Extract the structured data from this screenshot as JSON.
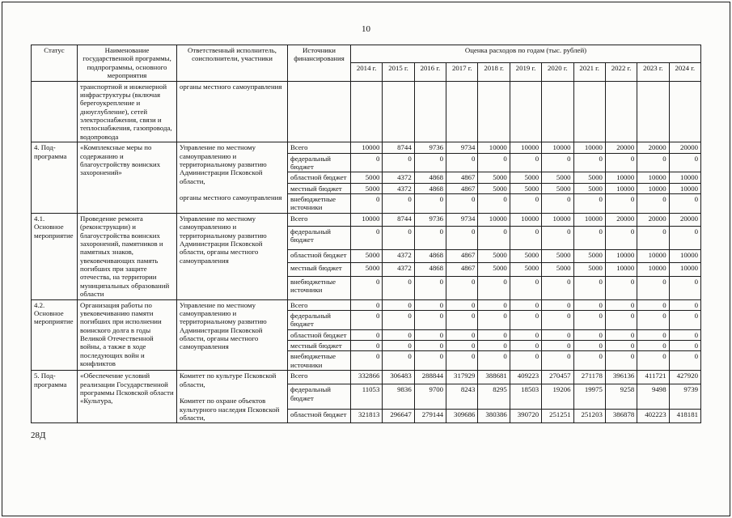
{
  "page": {
    "number": "10",
    "footer_code": "28Д"
  },
  "table": {
    "title_row": {
      "status": "Статус",
      "name": "Наименование государственной программы, подпрограммы, основного мероприятия",
      "executor": "Ответственный исполнитель, соисполнители, участники",
      "source": "Источники финансирования",
      "years_group": "Оценка расходов по годам (тыс. рублей)"
    },
    "years": [
      "2014 г.",
      "2015 г.",
      "2016 г.",
      "2017 г.",
      "2018 г.",
      "2019 г.",
      "2020 г.",
      "2021 г.",
      "2022 г.",
      "2023 г.",
      "2024 г."
    ],
    "groups": [
      {
        "status": "",
        "name": "транспортной и инженерной инфраструктуры (включая берегоукрепление и дноуглубление), сетей электроснабжения, связи и теплоснабжения, газопровода, водопровода",
        "executor": "органы местного самоуправления",
        "funding": [
          {
            "source": "",
            "values": [
              "",
              "",
              "",
              "",
              "",
              "",
              "",
              "",
              "",
              "",
              ""
            ]
          }
        ]
      },
      {
        "status": "4. Под-программа",
        "name": "«Комплексные меры по содержанию и благоустройству воинских захоронений»",
        "executor": "Управление по местному самоуправлению и территориальному развитию Администрации Псковской области,\n\nорганы местного самоуправления",
        "funding": [
          {
            "source": "Всего",
            "values": [
              "10000",
              "8744",
              "9736",
              "9734",
              "10000",
              "10000",
              "10000",
              "10000",
              "20000",
              "20000",
              "20000"
            ]
          },
          {
            "source": "федеральный бюджет",
            "values": [
              "0",
              "0",
              "0",
              "0",
              "0",
              "0",
              "0",
              "0",
              "0",
              "0",
              "0"
            ]
          },
          {
            "source": "областной бюджет",
            "values": [
              "5000",
              "4372",
              "4868",
              "4867",
              "5000",
              "5000",
              "5000",
              "5000",
              "10000",
              "10000",
              "10000"
            ]
          },
          {
            "source": "местный бюджет",
            "values": [
              "5000",
              "4372",
              "4868",
              "4867",
              "5000",
              "5000",
              "5000",
              "5000",
              "10000",
              "10000",
              "10000"
            ]
          },
          {
            "source": "внебюджетные источники",
            "values": [
              "0",
              "0",
              "0",
              "0",
              "0",
              "0",
              "0",
              "0",
              "0",
              "0",
              "0"
            ]
          }
        ]
      },
      {
        "status": "4.1. Основное мероприятие",
        "name": "Проведение ремонта (реконструкции) и благоустройства воинских захоронений, памятников и памятных знаков, увековечивающих память погибших при защите отечества, на территории муниципальных образований области",
        "executor": "Управление по местному самоуправлению и территориальному развитию Администрации Псковской области, органы местного самоуправления",
        "funding": [
          {
            "source": "Всего",
            "values": [
              "10000",
              "8744",
              "9736",
              "9734",
              "10000",
              "10000",
              "10000",
              "10000",
              "20000",
              "20000",
              "20000"
            ]
          },
          {
            "source": "федеральный бюджет",
            "values": [
              "0",
              "0",
              "0",
              "0",
              "0",
              "0",
              "0",
              "0",
              "0",
              "0",
              "0"
            ]
          },
          {
            "source": "областной бюджет",
            "values": [
              "5000",
              "4372",
              "4868",
              "4867",
              "5000",
              "5000",
              "5000",
              "5000",
              "10000",
              "10000",
              "10000"
            ]
          },
          {
            "source": "местный бюджет",
            "values": [
              "5000",
              "4372",
              "4868",
              "4867",
              "5000",
              "5000",
              "5000",
              "5000",
              "10000",
              "10000",
              "10000"
            ]
          },
          {
            "source": "внебюджетные источники",
            "values": [
              "0",
              "0",
              "0",
              "0",
              "0",
              "0",
              "0",
              "0",
              "0",
              "0",
              "0"
            ]
          }
        ]
      },
      {
        "status": "4.2. Основное мероприятие",
        "name": "Организация работы по увековечиванию памяти погибших при исполнении воинского долга в годы Великой Отечественной войны, а также в ходе последующих войн и конфликтов",
        "executor": "Управление по местному самоуправлению и территориальному развитию Администрации Псковской области, органы местного самоуправления",
        "funding": [
          {
            "source": "Всего",
            "values": [
              "0",
              "0",
              "0",
              "0",
              "0",
              "0",
              "0",
              "0",
              "0",
              "0",
              "0"
            ]
          },
          {
            "source": "федеральный бюджет",
            "values": [
              "0",
              "0",
              "0",
              "0",
              "0",
              "0",
              "0",
              "0",
              "0",
              "0",
              "0"
            ]
          },
          {
            "source": "областной бюджет",
            "values": [
              "0",
              "0",
              "0",
              "0",
              "0",
              "0",
              "0",
              "0",
              "0",
              "0",
              "0"
            ]
          },
          {
            "source": "местный бюджет",
            "values": [
              "0",
              "0",
              "0",
              "0",
              "0",
              "0",
              "0",
              "0",
              "0",
              "0",
              "0"
            ]
          },
          {
            "source": "внебюджетные источники",
            "values": [
              "0",
              "0",
              "0",
              "0",
              "0",
              "0",
              "0",
              "0",
              "0",
              "0",
              "0"
            ]
          }
        ]
      },
      {
        "status": "5. Под-программа",
        "name": "«Обеспечение условий реализации Государственной программы Псковской области «Культура,",
        "executor": "Комитет по культуре Псковской области,\n\nКомитет по охране объектов культурного наследия Псковской области,",
        "funding": [
          {
            "source": "Всего",
            "values": [
              "332866",
              "306483",
              "288844",
              "317929",
              "388681",
              "409223",
              "270457",
              "271178",
              "396136",
              "411721",
              "427920"
            ]
          },
          {
            "source": "федеральный бюджет",
            "values": [
              "11053",
              "9836",
              "9700",
              "8243",
              "8295",
              "18503",
              "19206",
              "19975",
              "9258",
              "9498",
              "9739"
            ]
          },
          {
            "source": "областной бюджет",
            "values": [
              "321813",
              "296647",
              "279144",
              "309686",
              "380386",
              "390720",
              "251251",
              "251203",
              "386878",
              "402223",
              "418181"
            ]
          }
        ]
      }
    ]
  }
}
